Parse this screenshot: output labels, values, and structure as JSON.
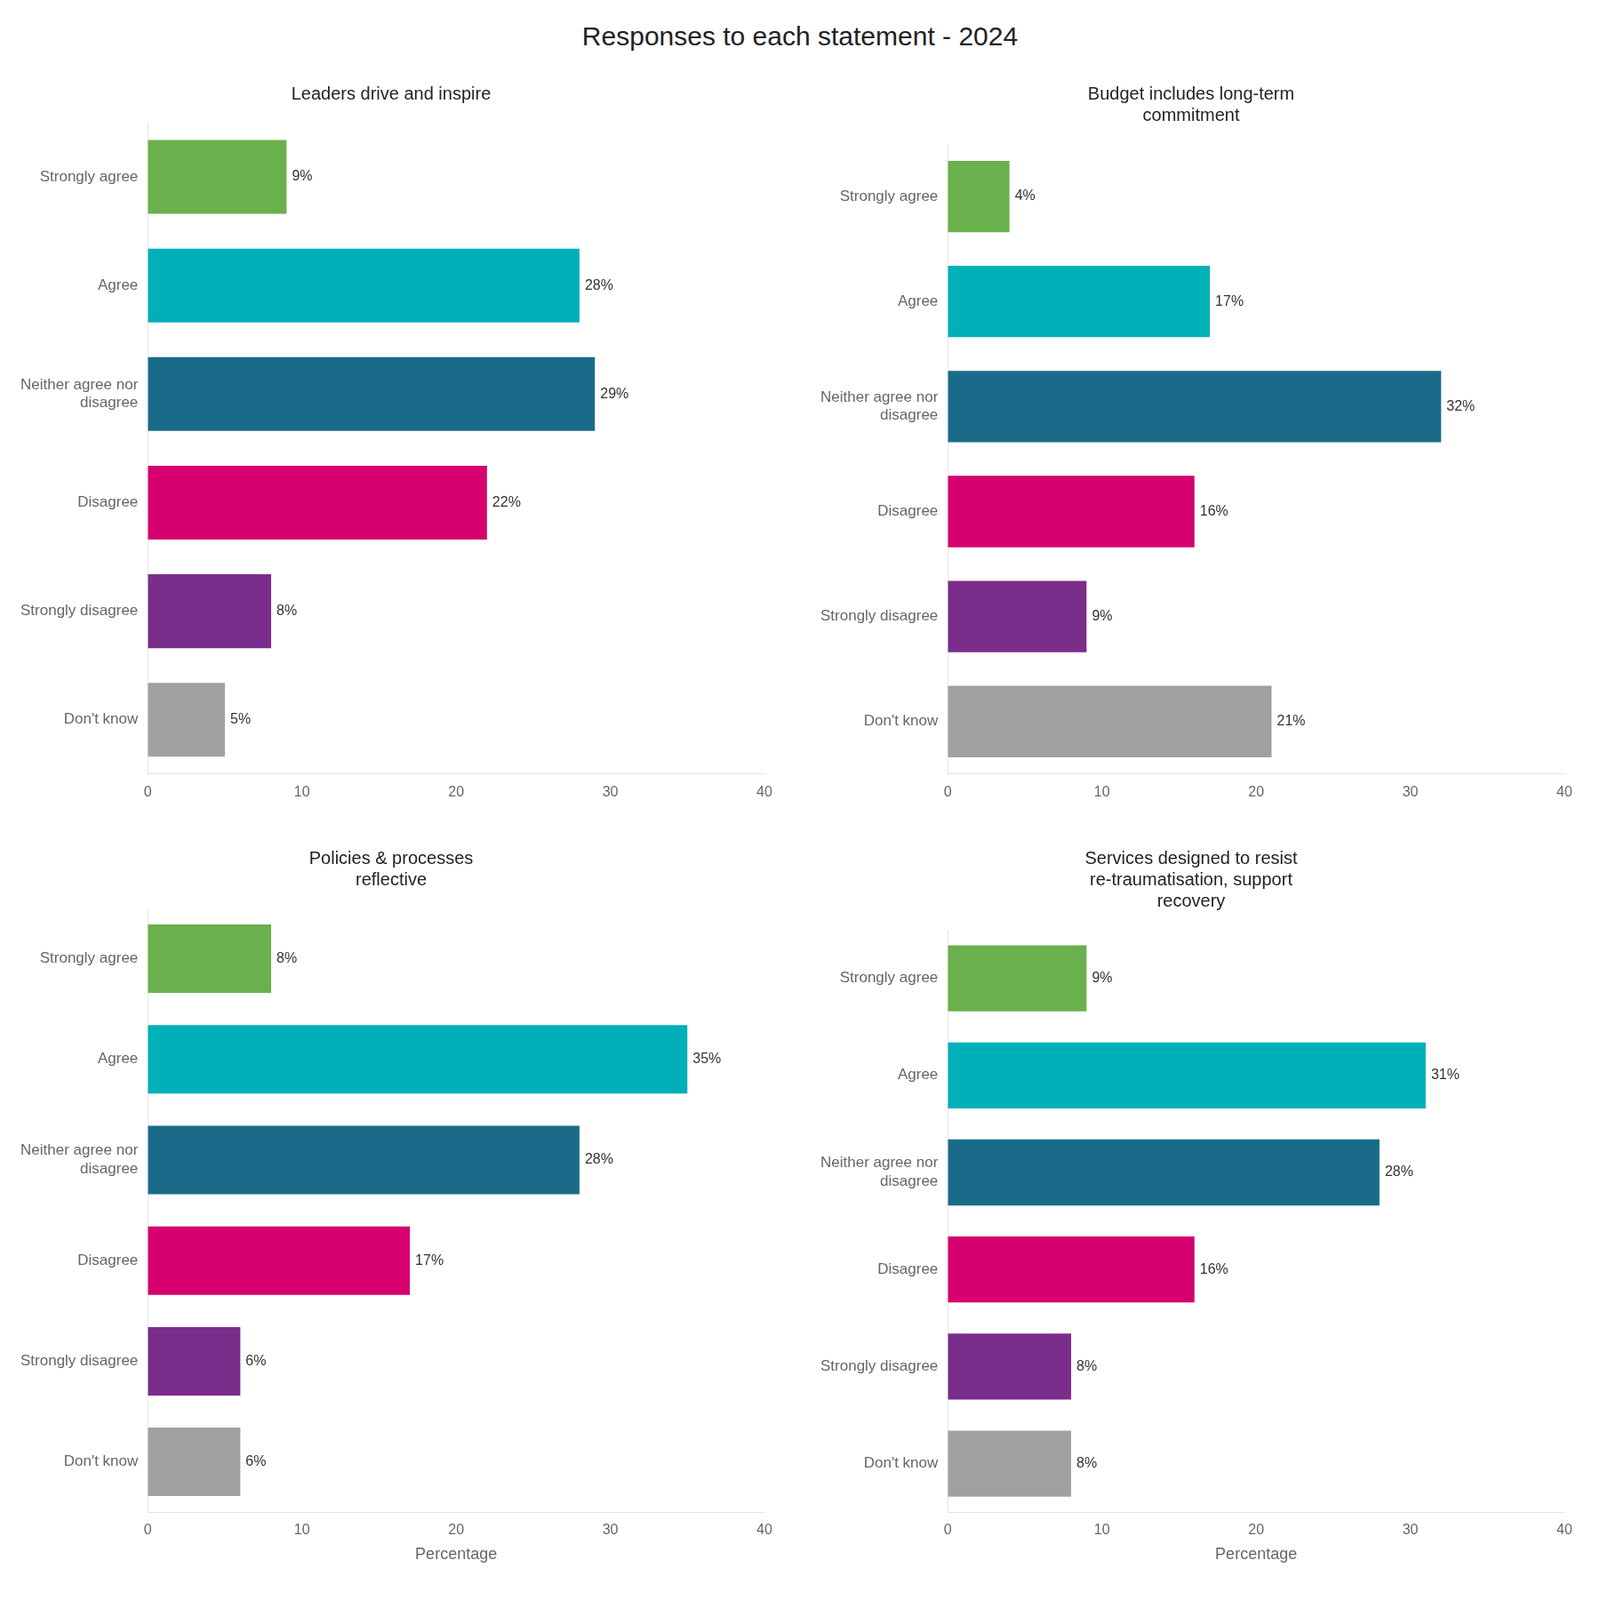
{
  "title": "Responses to each statement - 2024",
  "chart_data": [
    {
      "type": "bar",
      "orientation": "horizontal",
      "title": "Leaders drive and inspire",
      "categories": [
        "Strongly agree",
        "Agree",
        "Neither agree nor\ndisagree",
        "Disagree",
        "Strongly disagree",
        "Don't know"
      ],
      "values": [
        9,
        28,
        29,
        22,
        8,
        5
      ],
      "value_labels": [
        "9%",
        "28%",
        "29%",
        "22%",
        "8%",
        "5%"
      ],
      "colors": [
        "#6ab04c",
        "#00b0b9",
        "#1a6b8a",
        "#d6006e",
        "#7b2d8b",
        "#a0a0a0"
      ],
      "data_labels": true,
      "xlim": [
        0,
        40
      ],
      "xticks": [
        0,
        10,
        20,
        30,
        40
      ],
      "grid": false
    },
    {
      "type": "bar",
      "orientation": "horizontal",
      "title": "Budget includes long-term\ncommitment",
      "categories": [
        "Strongly agree",
        "Agree",
        "Neither agree nor\ndisagree",
        "Disagree",
        "Strongly disagree",
        "Don't know"
      ],
      "values": [
        4,
        17,
        32,
        16,
        9,
        21
      ],
      "value_labels": [
        "4%",
        "17%",
        "32%",
        "16%",
        "9%",
        "21%"
      ],
      "colors": [
        "#6ab04c",
        "#00b0b9",
        "#1a6b8a",
        "#d6006e",
        "#7b2d8b",
        "#a0a0a0"
      ],
      "data_labels": true,
      "xlim": [
        0,
        40
      ],
      "xticks": [
        0,
        10,
        20,
        30,
        40
      ],
      "grid": false
    },
    {
      "type": "bar",
      "orientation": "horizontal",
      "title": "Policies & processes\nreflective",
      "categories": [
        "Strongly agree",
        "Agree",
        "Neither agree nor\ndisagree",
        "Disagree",
        "Strongly disagree",
        "Don't know"
      ],
      "values": [
        8,
        35,
        28,
        17,
        6,
        6
      ],
      "value_labels": [
        "8%",
        "35%",
        "28%",
        "17%",
        "6%",
        "6%"
      ],
      "colors": [
        "#6ab04c",
        "#00b0b9",
        "#1a6b8a",
        "#d6006e",
        "#7b2d8b",
        "#a0a0a0"
      ],
      "data_labels": true,
      "xlabel": "Percentage",
      "xlim": [
        0,
        40
      ],
      "xticks": [
        0,
        10,
        20,
        30,
        40
      ],
      "grid": false
    },
    {
      "type": "bar",
      "orientation": "horizontal",
      "title": "Services designed to resist\nre-traumatisation, support\nrecovery",
      "categories": [
        "Strongly agree",
        "Agree",
        "Neither agree nor\ndisagree",
        "Disagree",
        "Strongly disagree",
        "Don't know"
      ],
      "values": [
        9,
        31,
        28,
        16,
        8,
        8
      ],
      "value_labels": [
        "9%",
        "31%",
        "28%",
        "16%",
        "8%",
        "8%"
      ],
      "colors": [
        "#6ab04c",
        "#00b0b9",
        "#1a6b8a",
        "#d6006e",
        "#7b2d8b",
        "#a0a0a0"
      ],
      "data_labels": true,
      "xlabel": "Percentage",
      "xlim": [
        0,
        40
      ],
      "xticks": [
        0,
        10,
        20,
        30,
        40
      ],
      "grid": false
    }
  ]
}
